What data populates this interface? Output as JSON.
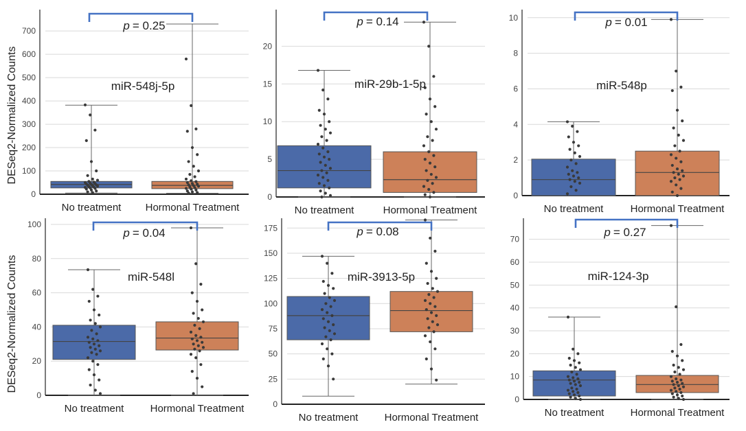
{
  "figure": {
    "ylabel": "DESeq2-Normalized Counts",
    "colors": {
      "no_treatment": "#4b6aa8",
      "hormonal": "#cd8159",
      "bracket": "#4472c4",
      "grid": "#d9d9d9",
      "point": "#3a3a3a"
    }
  },
  "chart_data": [
    {
      "type": "box",
      "title": "miR-548j-5p",
      "p_label": "= 0.25",
      "categories": [
        "No treatment",
        "Hormonal Treatment"
      ],
      "ylim": [
        0,
        780
      ],
      "yticks": [
        0,
        100,
        200,
        300,
        400,
        500,
        600,
        700
      ],
      "boxes": [
        {
          "whisker_low": 5,
          "q1": 27,
          "median": 42,
          "q3": 55,
          "whisker_high": 382,
          "points": [
            383,
            340,
            275,
            230,
            140,
            100,
            80,
            65,
            60,
            55,
            52,
            50,
            48,
            46,
            44,
            42,
            40,
            38,
            36,
            35,
            33,
            31,
            29,
            27,
            25,
            22,
            18,
            14,
            10,
            7
          ]
        },
        {
          "whisker_low": 4,
          "q1": 24,
          "median": 38,
          "q3": 55,
          "whisker_high": 730,
          "points": [
            580,
            380,
            280,
            270,
            200,
            170,
            140,
            120,
            100,
            85,
            75,
            65,
            58,
            54,
            50,
            46,
            43,
            40,
            37,
            34,
            31,
            28,
            25,
            22,
            18,
            14,
            10,
            7,
            5
          ]
        }
      ]
    },
    {
      "type": "box",
      "title": "miR-29b-1-5p",
      "p_label": "= 0.14",
      "categories": [
        "No treatment",
        "Hormonal Treatment"
      ],
      "ylim": [
        0,
        24.5
      ],
      "yticks": [
        0,
        5,
        10,
        15,
        20
      ],
      "boxes": [
        {
          "whisker_low": 0,
          "q1": 1.2,
          "median": 3.5,
          "q3": 6.8,
          "whisker_high": 16.8,
          "points": [
            16.8,
            14.2,
            13,
            11.5,
            11,
            10,
            9.5,
            9,
            8.5,
            8,
            7.5,
            7,
            6.5,
            6,
            5.7,
            5.3,
            5,
            4.6,
            4.2,
            3.8,
            3.5,
            3.2,
            2.9,
            2.6,
            2.2,
            1.8,
            1.5,
            1.2,
            0.8,
            0.5,
            0.2,
            0
          ]
        },
        {
          "whisker_low": 0,
          "q1": 0.6,
          "median": 2.3,
          "q3": 6,
          "whisker_high": 23.2,
          "points": [
            23.2,
            20,
            16,
            14.5,
            13,
            12,
            11,
            10,
            9,
            8,
            7.5,
            6.8,
            6,
            5.5,
            5,
            4.5,
            4,
            3.5,
            3,
            2.6,
            2.2,
            1.8,
            1.4,
            1,
            0.6,
            0.3,
            0
          ]
        }
      ]
    },
    {
      "type": "box",
      "title": "miR-548p",
      "p_label": "= 0.01",
      "categories": [
        "No treatment",
        "Hormonal Treatment"
      ],
      "ylim": [
        0,
        10.3
      ],
      "yticks": [
        0,
        2,
        4,
        6,
        8,
        10
      ],
      "boxes": [
        {
          "whisker_low": 0,
          "q1": 0,
          "median": 0.9,
          "q3": 2.05,
          "whisker_high": 4.15,
          "points": [
            4.15,
            3.9,
            3.6,
            3.3,
            3,
            2.8,
            2.6,
            2.4,
            2.2,
            2,
            1.8,
            1.6,
            1.4,
            1.3,
            1.2,
            1.1,
            1,
            0.9,
            0.8,
            0.7,
            0.5,
            0.3,
            0.1
          ]
        },
        {
          "whisker_low": 0,
          "q1": 0,
          "median": 1.3,
          "q3": 2.5,
          "whisker_high": 9.9,
          "points": [
            9.9,
            7,
            6.1,
            5.9,
            4.8,
            4.2,
            3.8,
            3.4,
            3.1,
            2.8,
            2.5,
            2.3,
            2.1,
            1.9,
            1.7,
            1.5,
            1.4,
            1.3,
            1.2,
            1.1,
            1,
            0.9,
            0.8,
            0.6,
            0.4,
            0.2,
            0
          ]
        }
      ]
    },
    {
      "type": "box",
      "title": "miR-548l",
      "p_label": "= 0.04",
      "categories": [
        "No treatment",
        "Hormonal Treatment"
      ],
      "ylim": [
        0,
        102
      ],
      "yticks": [
        0,
        20,
        40,
        60,
        80,
        100
      ],
      "boxes": [
        {
          "whisker_low": 0,
          "q1": 21,
          "median": 31.5,
          "q3": 41,
          "whisker_high": 73.5,
          "points": [
            73.5,
            62,
            58,
            55,
            50,
            47,
            44,
            42,
            40,
            38,
            36,
            34,
            33,
            32,
            31,
            30,
            29,
            28,
            27,
            26,
            25,
            24,
            22,
            20,
            18,
            15,
            12,
            9,
            6,
            3,
            1
          ]
        },
        {
          "whisker_low": 0,
          "q1": 26.5,
          "median": 33.5,
          "q3": 43,
          "whisker_high": 98,
          "points": [
            98,
            77,
            65,
            60,
            55,
            50,
            48,
            45,
            43,
            41,
            39,
            37,
            35,
            34,
            33,
            32,
            31,
            30,
            29,
            28,
            27,
            26,
            24,
            22,
            18,
            14,
            10,
            5,
            1
          ]
        }
      ]
    },
    {
      "type": "box",
      "title": "miR-3913-5p",
      "p_label": "= 0.08",
      "categories": [
        "No treatment",
        "Hormonal Treatment"
      ],
      "ylim": [
        0,
        182
      ],
      "yticks": [
        0,
        25,
        50,
        75,
        100,
        125,
        150,
        175
      ],
      "boxes": [
        {
          "whisker_low": 8,
          "q1": 64,
          "median": 88,
          "q3": 107,
          "whisker_high": 147,
          "points": [
            147,
            140,
            130,
            122,
            118,
            115,
            110,
            106,
            103,
            100,
            97,
            94,
            91,
            88,
            85,
            82,
            79,
            76,
            73,
            70,
            67,
            64,
            60,
            55,
            50,
            45,
            38,
            25
          ]
        },
        {
          "whisker_low": 20,
          "q1": 72,
          "median": 93,
          "q3": 112,
          "whisker_high": 183,
          "points": [
            183,
            165,
            152,
            140,
            132,
            125,
            120,
            115,
            112,
            109,
            106,
            103,
            100,
            97,
            94,
            91,
            88,
            85,
            82,
            79,
            76,
            72,
            68,
            62,
            55,
            45,
            35,
            24
          ]
        }
      ]
    },
    {
      "type": "box",
      "title": "miR-124-3p",
      "p_label": "= 0.27",
      "categories": [
        "No treatment",
        "Hormonal Treatment"
      ],
      "ylim": [
        0,
        78
      ],
      "yticks": [
        0,
        10,
        20,
        30,
        40,
        50,
        60,
        70
      ],
      "boxes": [
        {
          "whisker_low": 0,
          "q1": 1.5,
          "median": 8.5,
          "q3": 12.5,
          "whisker_high": 36,
          "points": [
            36,
            22,
            20,
            18,
            17,
            16,
            15,
            14,
            13,
            12,
            11,
            10,
            9.5,
            9,
            8.5,
            8,
            7.5,
            7,
            6.5,
            6,
            5,
            4.5,
            4,
            3.5,
            3,
            2.5,
            2,
            1.5,
            1,
            0.5,
            0
          ]
        },
        {
          "whisker_low": 0,
          "q1": 3,
          "median": 6.5,
          "q3": 10.5,
          "whisker_high": 76,
          "points": [
            76,
            40.5,
            24,
            21,
            19,
            17,
            15,
            14,
            13,
            12,
            11,
            10,
            9,
            8.5,
            8,
            7.5,
            7,
            6.5,
            6,
            5.5,
            5,
            4.5,
            4,
            3.5,
            3,
            2.5,
            2,
            1.5,
            1,
            0.5,
            0
          ]
        }
      ]
    }
  ]
}
